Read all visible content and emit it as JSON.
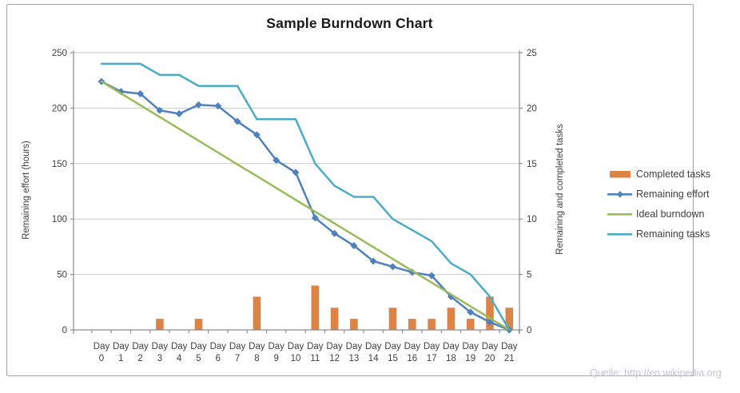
{
  "source_note": "Quelle: http://en.wikipedia.org",
  "colors": {
    "grid": "#c9c9c9",
    "axis": "#8c8c8c",
    "tick_text": "#3f3f3f",
    "title_text": "#1a1a1a"
  },
  "chart_data": {
    "type": "combo",
    "title": "Sample Burndown Chart",
    "categories": [
      "Day 0",
      "Day 1",
      "Day 2",
      "Day 3",
      "Day 4",
      "Day 5",
      "Day 6",
      "Day 7",
      "Day 8",
      "Day 9",
      "Day 10",
      "Day 11",
      "Day 12",
      "Day 13",
      "Day 14",
      "Day 15",
      "Day 16",
      "Day 17",
      "Day 18",
      "Day 19",
      "Day 20",
      "Day 21"
    ],
    "left_axis": {
      "label": "Remaining effort (hours)",
      "min": 0,
      "max": 250,
      "ticks": [
        0,
        50,
        100,
        150,
        200,
        250
      ]
    },
    "right_axis": {
      "label": "Remaining and completed tasks",
      "min": 0,
      "max": 25,
      "ticks": [
        0,
        5,
        10,
        15,
        20,
        25
      ]
    },
    "grid": true,
    "legend_position": "right",
    "series": [
      {
        "name": "Completed tasks",
        "type": "bar",
        "axis": "right",
        "color": "#dc8446",
        "values": [
          0,
          0,
          0,
          1,
          0,
          1,
          0,
          0,
          3,
          0,
          0,
          4,
          2,
          1,
          0,
          2,
          1,
          1,
          2,
          1,
          3,
          2
        ]
      },
      {
        "name": "Remaining effort",
        "type": "line",
        "marker": "diamond",
        "axis": "left",
        "color": "#4f81bd",
        "values": [
          224,
          215,
          213,
          198,
          195,
          203,
          202,
          188,
          176,
          153,
          142,
          101,
          87,
          76,
          62,
          57,
          52,
          49,
          30,
          16,
          7,
          0
        ]
      },
      {
        "name": "Ideal burndown",
        "type": "line",
        "axis": "left",
        "color": "#9bbb59",
        "values": [
          224,
          213.3,
          202.7,
          192,
          181.3,
          170.7,
          160,
          149.3,
          138.7,
          128,
          117.3,
          106.7,
          96,
          85.3,
          74.7,
          64,
          53.3,
          42.7,
          32,
          21.3,
          10.7,
          0
        ]
      },
      {
        "name": "Remaining tasks",
        "type": "line",
        "axis": "right",
        "color": "#4bacc6",
        "values": [
          24,
          24,
          24,
          23,
          23,
          22,
          22,
          22,
          19,
          19,
          19,
          15,
          13,
          12,
          12,
          10,
          9,
          8,
          6,
          5,
          3,
          0
        ]
      }
    ]
  }
}
